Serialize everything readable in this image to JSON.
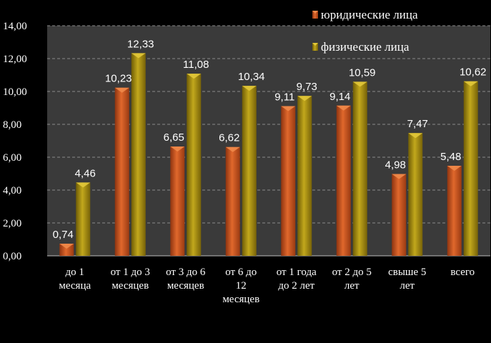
{
  "chart_data": {
    "type": "bar",
    "title": "",
    "xlabel": "",
    "ylabel": "",
    "categories": [
      [
        "до 1",
        "месяца"
      ],
      [
        "от 1 до 3",
        "месяцев"
      ],
      [
        "от 3 до 6",
        "месяцев"
      ],
      [
        "от 6 до",
        "12",
        "месяцев"
      ],
      [
        "от 1 года",
        "до 2 лет"
      ],
      [
        "от 2 до 5",
        "лет"
      ],
      [
        "свыше 5",
        "лет"
      ],
      [
        "всего"
      ]
    ],
    "series": [
      {
        "name": "юридические лица",
        "color": "#c8541c",
        "values": [
          0.74,
          10.23,
          6.65,
          6.62,
          9.11,
          9.14,
          4.98,
          5.48
        ],
        "labels": [
          "0,74",
          "10,23",
          "6,65",
          "6,62",
          "9,11",
          "9,14",
          "4,98",
          "5,48"
        ]
      },
      {
        "name": "физические лица",
        "color": "#a08a12",
        "values": [
          4.46,
          12.33,
          11.08,
          10.34,
          9.73,
          10.59,
          7.47,
          10.62
        ],
        "labels": [
          "4,46",
          "12,33",
          "11,08",
          "10,34",
          "9,73",
          "10,59",
          "7,47",
          "10,62"
        ]
      }
    ],
    "ylim": [
      0,
      14
    ],
    "yticks": [
      0,
      2,
      4,
      6,
      8,
      10,
      12,
      14
    ],
    "ytick_labels": [
      "0,00",
      "2,00",
      "4,00",
      "6,00",
      "8,00",
      "10,00",
      "12,00",
      "14,00"
    ],
    "grid": true,
    "legend_position": "top-right"
  }
}
